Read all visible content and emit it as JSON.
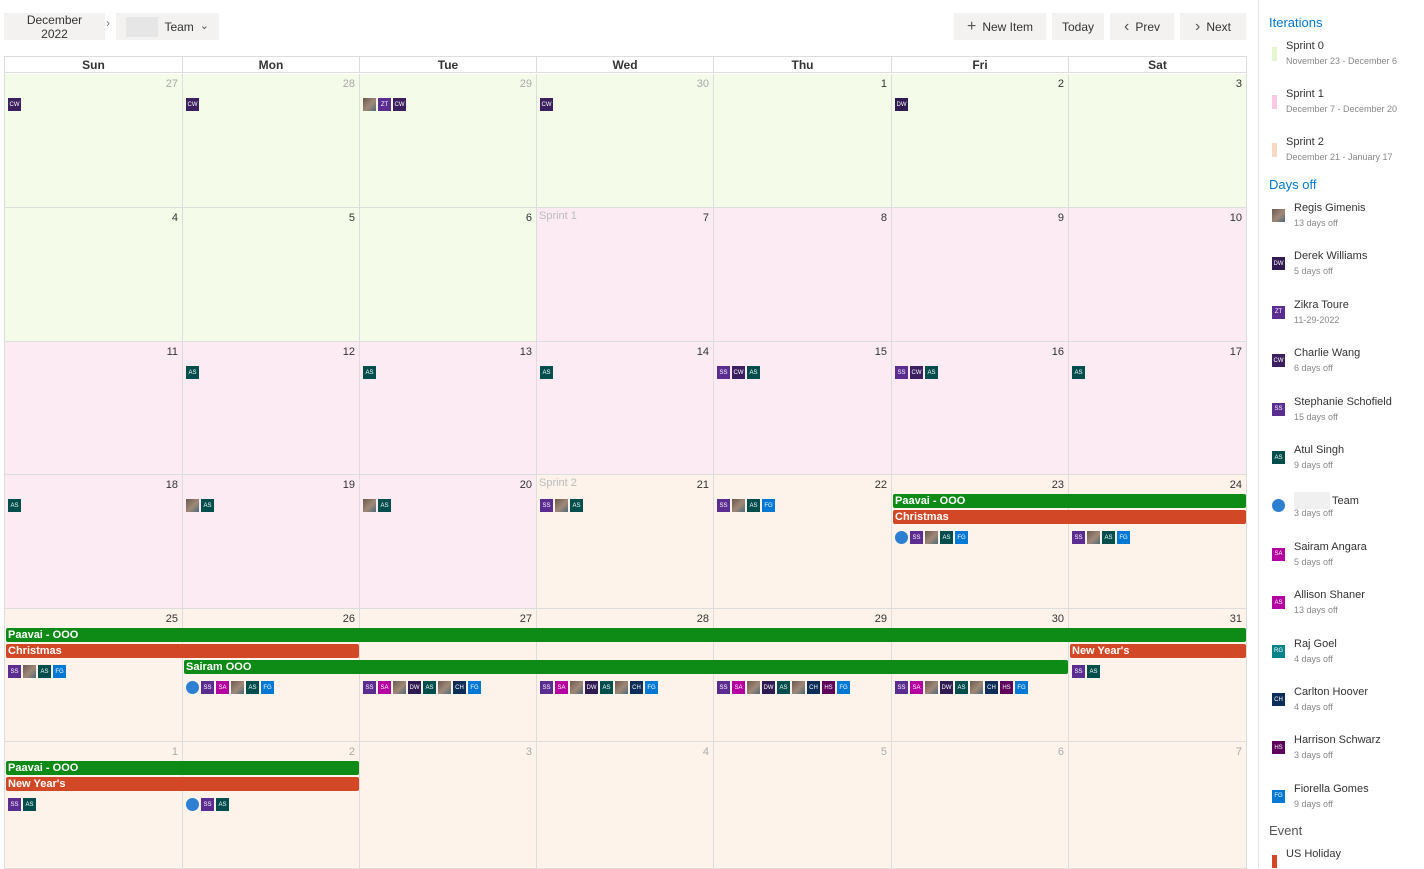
{
  "toolbar": {
    "month_label": "December 2022",
    "team_label": "Team",
    "new_item": "New Item",
    "today": "Today",
    "prev": "Prev",
    "next": "Next"
  },
  "weekdays": [
    "Sun",
    "Mon",
    "Tue",
    "Wed",
    "Thu",
    "Fri",
    "Sat"
  ],
  "colors": {
    "sprint0": "#f4fbe9",
    "sprint1": "#fdebf4",
    "sprint2": "#fdf3ea",
    "event_ooo": "#0e8a16",
    "event_holiday": "#d24726"
  },
  "weeks": [
    {
      "days": [
        {
          "num": "27",
          "other": true,
          "sprint": "sprint0",
          "avatars": [
            "CW"
          ]
        },
        {
          "num": "28",
          "other": true,
          "sprint": "sprint0",
          "avatars": [
            "CW"
          ]
        },
        {
          "num": "29",
          "other": true,
          "sprint": "sprint0",
          "avatars": [
            "RG",
            "ZT",
            "CW"
          ]
        },
        {
          "num": "30",
          "other": true,
          "sprint": "sprint0",
          "avatars": [
            "CW"
          ]
        },
        {
          "num": "1",
          "sprint": "sprint0",
          "avatars": []
        },
        {
          "num": "2",
          "sprint": "sprint0",
          "avatars": [
            "DW"
          ]
        },
        {
          "num": "3",
          "sprint": "sprint0",
          "avatars": []
        }
      ]
    },
    {
      "days": [
        {
          "num": "4",
          "sprint": "sprint0",
          "avatars": []
        },
        {
          "num": "5",
          "sprint": "sprint0",
          "avatars": []
        },
        {
          "num": "6",
          "sprint": "sprint0",
          "avatars": []
        },
        {
          "num": "7",
          "sprint": "sprint1",
          "sprint_label": "Sprint 1",
          "avatars": []
        },
        {
          "num": "8",
          "sprint": "sprint1",
          "avatars": []
        },
        {
          "num": "9",
          "sprint": "sprint1",
          "avatars": []
        },
        {
          "num": "10",
          "sprint": "sprint1",
          "avatars": []
        }
      ]
    },
    {
      "days": [
        {
          "num": "11",
          "sprint": "sprint1",
          "avatars": []
        },
        {
          "num": "12",
          "sprint": "sprint1",
          "avatars": [
            "AS"
          ]
        },
        {
          "num": "13",
          "sprint": "sprint1",
          "avatars": [
            "AS"
          ]
        },
        {
          "num": "14",
          "sprint": "sprint1",
          "avatars": [
            "AS"
          ]
        },
        {
          "num": "15",
          "sprint": "sprint1",
          "avatars": [
            "SS",
            "CW",
            "AS"
          ]
        },
        {
          "num": "16",
          "sprint": "sprint1",
          "avatars": [
            "SS",
            "CW",
            "AS"
          ]
        },
        {
          "num": "17",
          "sprint": "sprint1",
          "avatars": [
            "AS"
          ]
        }
      ]
    },
    {
      "days": [
        {
          "num": "18",
          "sprint": "sprint1",
          "avatars": [
            "AS"
          ]
        },
        {
          "num": "19",
          "sprint": "sprint1",
          "avatars": [
            "RG",
            "AS"
          ]
        },
        {
          "num": "20",
          "sprint": "sprint1",
          "avatars": [
            "RG",
            "AS"
          ]
        },
        {
          "num": "21",
          "sprint": "sprint2",
          "sprint_label": "Sprint 2",
          "avatars": [
            "SS",
            "RG",
            "AS"
          ]
        },
        {
          "num": "22",
          "sprint": "sprint2",
          "avatars": [
            "SS",
            "RG",
            "AS",
            "FG"
          ]
        },
        {
          "num": "23",
          "sprint": "sprint2",
          "avatars": [
            "LOGO",
            "SS",
            "RG",
            "AS",
            "FG"
          ]
        },
        {
          "num": "24",
          "sprint": "sprint2",
          "avatars": [
            "SS",
            "RG",
            "AS",
            "FG"
          ]
        }
      ]
    },
    {
      "days": [
        {
          "num": "25",
          "sprint": "sprint2",
          "avatars": [
            "SS",
            "RG",
            "AS",
            "FG"
          ]
        },
        {
          "num": "26",
          "sprint": "sprint2",
          "avatars": [
            "LOGO",
            "SS",
            "SA",
            "RG",
            "AS",
            "FG"
          ]
        },
        {
          "num": "27",
          "sprint": "sprint2",
          "avatars": [
            "SS",
            "SA",
            "RG",
            "DW",
            "AS",
            "RG",
            "CH",
            "FG"
          ]
        },
        {
          "num": "28",
          "sprint": "sprint2",
          "avatars": [
            "SS",
            "SA",
            "RG",
            "DW",
            "AS",
            "RG",
            "CH",
            "FG"
          ]
        },
        {
          "num": "29",
          "sprint": "sprint2",
          "avatars": [
            "SS",
            "SA",
            "RG",
            "DW",
            "AS",
            "RG",
            "CH",
            "HS",
            "FG"
          ]
        },
        {
          "num": "30",
          "sprint": "sprint2",
          "avatars": [
            "SS",
            "SA",
            "RG",
            "DW",
            "AS",
            "RG",
            "CH",
            "HS",
            "FG"
          ]
        },
        {
          "num": "31",
          "sprint": "sprint2",
          "avatars": [
            "SS",
            "AS"
          ]
        }
      ]
    },
    {
      "days": [
        {
          "num": "1",
          "other": true,
          "sprint": "sprint2",
          "avatars": [
            "SS",
            "AS"
          ]
        },
        {
          "num": "2",
          "other": true,
          "sprint": "sprint2",
          "avatars": [
            "LOGO",
            "SS",
            "AS"
          ]
        },
        {
          "num": "3",
          "other": true,
          "sprint": "sprint2",
          "avatars": []
        },
        {
          "num": "4",
          "other": true,
          "sprint": "sprint2",
          "avatars": []
        },
        {
          "num": "5",
          "other": true,
          "sprint": "sprint2",
          "avatars": []
        },
        {
          "num": "6",
          "other": true,
          "sprint": "sprint2",
          "avatars": []
        },
        {
          "num": "7",
          "other": true,
          "sprint": "sprint2",
          "avatars": []
        }
      ]
    }
  ],
  "events": [
    {
      "week": 3,
      "start": 5,
      "end": 6,
      "lane": 0,
      "label": "Paavai - OOO",
      "kind": "ooo"
    },
    {
      "week": 3,
      "start": 5,
      "end": 6,
      "lane": 1,
      "label": "Christmas",
      "kind": "holiday"
    },
    {
      "week": 4,
      "start": 0,
      "end": 6,
      "lane": 0,
      "label": "Paavai - OOO",
      "kind": "ooo"
    },
    {
      "week": 4,
      "start": 0,
      "end": 1,
      "lane": 1,
      "label": "Christmas",
      "kind": "holiday"
    },
    {
      "week": 4,
      "start": 6,
      "end": 6,
      "lane": 1,
      "label": "New Year's",
      "kind": "holiday"
    },
    {
      "week": 4,
      "start": 1,
      "end": 5,
      "lane": 2,
      "label": "Sairam OOO",
      "kind": "ooo"
    },
    {
      "week": 5,
      "start": 0,
      "end": 1,
      "lane": 0,
      "label": "Paavai - OOO",
      "kind": "ooo"
    },
    {
      "week": 5,
      "start": 0,
      "end": 1,
      "lane": 1,
      "label": "New Year's",
      "kind": "holiday"
    }
  ],
  "avatar_colors": {
    "CW": "#3b1f5e",
    "DW": "#2f1a52",
    "ZT": "#5c2d91",
    "SS": "#5c2d91",
    "AS": "#004e4c",
    "SA": "#b4009e",
    "AS2": "#b4009e",
    "RG2": "#038387",
    "CH": "#0c2d57",
    "HS": "#5c005c",
    "FG": "#0078d4"
  },
  "sidebar": {
    "iterations_title": "Iterations",
    "iterations": [
      {
        "name": "Sprint 0",
        "dates": "November 23 - December 6",
        "color": "#e6f5cf"
      },
      {
        "name": "Sprint 1",
        "dates": "December 7 - December 20",
        "color": "#f9c9e2"
      },
      {
        "name": "Sprint 2",
        "dates": "December 21 - January 17",
        "color": "#f7d9c4"
      }
    ],
    "daysoff_title": "Days off",
    "people": [
      {
        "initials": "RG",
        "name": "Regis Gimenis",
        "sub": "13 days off",
        "photo": true
      },
      {
        "initials": "DW",
        "name": "Derek Williams",
        "sub": "5 days off",
        "color": "#2f1a52"
      },
      {
        "initials": "ZT",
        "name": "Zikra Toure",
        "sub": "11-29-2022",
        "color": "#5c2d91"
      },
      {
        "initials": "CW",
        "name": "Charlie Wang",
        "sub": "6 days off",
        "color": "#3b1f5e"
      },
      {
        "initials": "SS",
        "name": "Stephanie Schofield",
        "sub": "15 days off",
        "color": "#5c2d91"
      },
      {
        "initials": "AS",
        "name": "Atul Singh",
        "sub": "9 days off",
        "color": "#004e4c"
      },
      {
        "initials": "LOGO",
        "name": "Team",
        "sub": "3 days off",
        "logo": true
      },
      {
        "initials": "SA",
        "name": "Sairam Angara",
        "sub": "5 days off",
        "color": "#b4009e"
      },
      {
        "initials": "AS",
        "name": "Allison Shaner",
        "sub": "13 days off",
        "color": "#b4009e"
      },
      {
        "initials": "RG",
        "name": "Raj Goel",
        "sub": "4 days off",
        "color": "#038387"
      },
      {
        "initials": "CH",
        "name": "Carlton Hoover",
        "sub": "4 days off",
        "color": "#0c2d57"
      },
      {
        "initials": "HS",
        "name": "Harrison Schwarz",
        "sub": "3 days off",
        "color": "#5c005c"
      },
      {
        "initials": "FG",
        "name": "Fiorella Gomes",
        "sub": "9 days off",
        "color": "#0078d4"
      }
    ],
    "event_title": "Event",
    "events": [
      {
        "name": "US Holiday",
        "color": "#d24726"
      }
    ]
  }
}
